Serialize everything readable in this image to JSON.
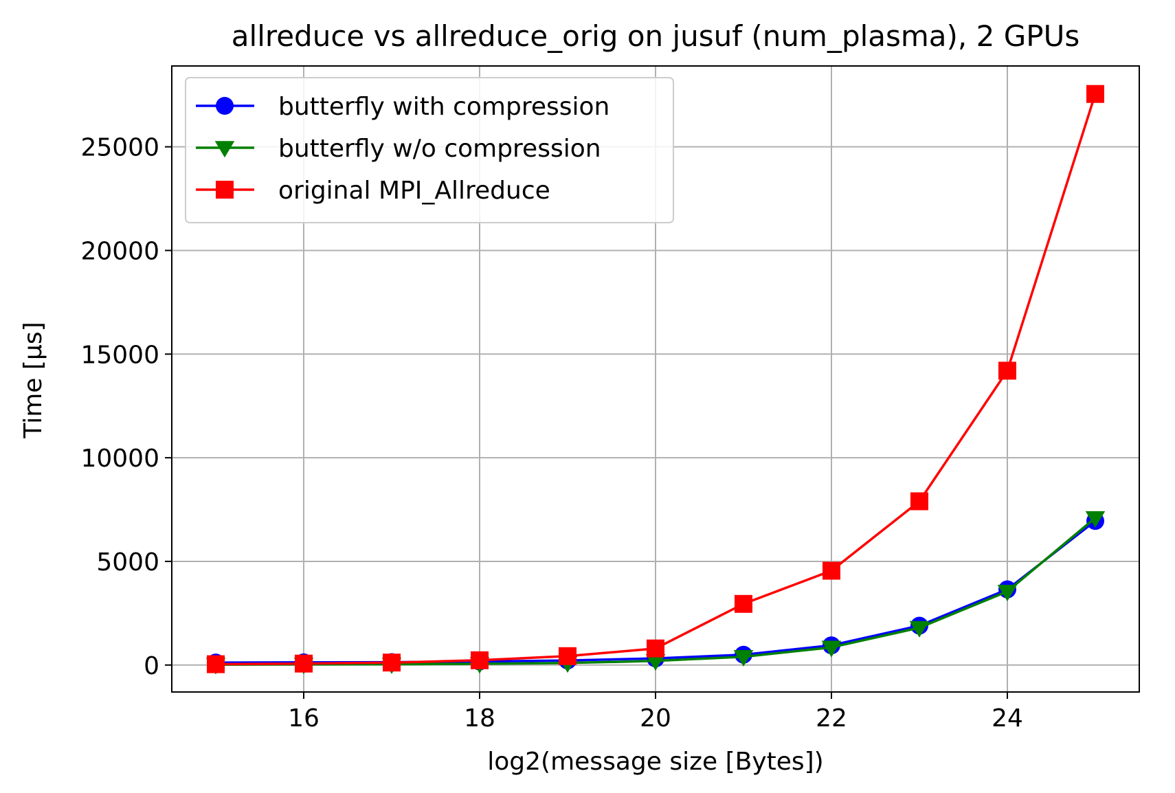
{
  "chart_data": {
    "type": "line",
    "title": "allreduce vs allreduce_orig on jusuf (num_plasma), 2 GPUs",
    "xlabel": "log2(message size [Bytes])",
    "ylabel": "Time [µs]",
    "xlim": [
      14.5,
      25.5
    ],
    "ylim": [
      -1300,
      28900
    ],
    "xticks": [
      16,
      18,
      20,
      22,
      24
    ],
    "yticks": [
      0,
      5000,
      10000,
      15000,
      20000,
      25000
    ],
    "grid": true,
    "legend_position": "top-left",
    "x": [
      15,
      16,
      17,
      18,
      19,
      20,
      21,
      22,
      23,
      24,
      25
    ],
    "series": [
      {
        "name": "butterfly with compression",
        "color": "#0000ff",
        "marker": "circle",
        "values": [
          120,
          130,
          140,
          170,
          220,
          320,
          500,
          950,
          1900,
          3650,
          6950
        ]
      },
      {
        "name": "butterfly w/o compression",
        "color": "#008000",
        "marker": "triangle-down",
        "values": [
          20,
          30,
          40,
          60,
          100,
          200,
          400,
          850,
          1800,
          3550,
          7100
        ]
      },
      {
        "name": "original MPI_Allreduce",
        "color": "#ff0000",
        "marker": "square",
        "values": [
          40,
          70,
          120,
          230,
          430,
          800,
          2950,
          4550,
          7900,
          14200,
          27550
        ]
      }
    ]
  }
}
